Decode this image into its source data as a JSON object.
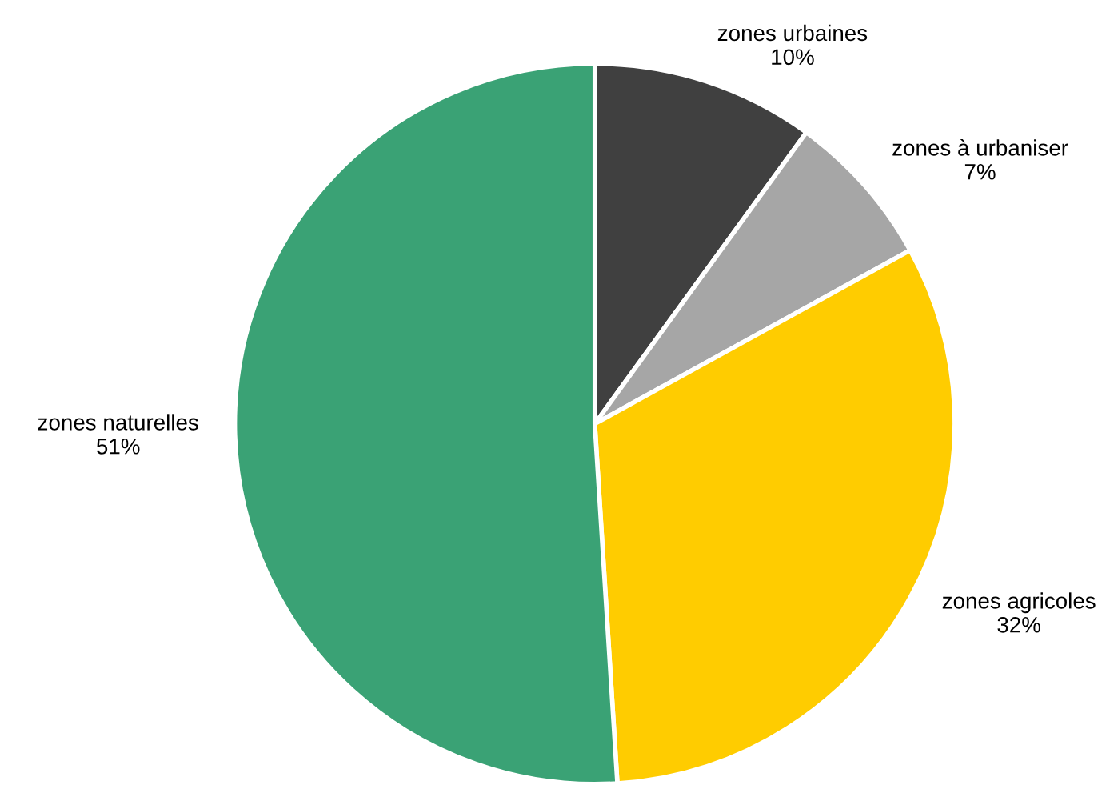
{
  "chart_data": {
    "type": "pie",
    "categories": [
      "zones urbaines",
      "zones à urbaniser",
      "zones agricoles",
      "zones naturelles"
    ],
    "values": [
      10,
      7,
      32,
      51
    ],
    "value_labels": [
      "10%",
      "7%",
      "32%",
      "51%"
    ],
    "colors": [
      "#404040",
      "#a6a6a6",
      "#ffcc00",
      "#3aa275"
    ],
    "legend": false
  }
}
